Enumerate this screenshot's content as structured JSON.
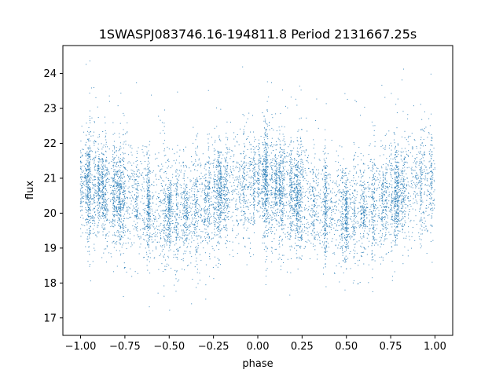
{
  "chart_data": {
    "type": "scatter",
    "title": "1SWASPJ083746.16-194811.8 Period 2131667.25s",
    "xlabel": "phase",
    "ylabel": "flux",
    "xlim": [
      -1.1,
      1.1
    ],
    "ylim": [
      16.5,
      24.8
    ],
    "xticks": [
      -1.0,
      -0.75,
      -0.5,
      -0.25,
      0.0,
      0.25,
      0.5,
      0.75,
      1.0
    ],
    "xtick_labels": [
      "−1.00",
      "−0.75",
      "−0.50",
      "−0.25",
      "0.00",
      "0.25",
      "0.50",
      "0.75",
      "1.00"
    ],
    "yticks": [
      17,
      18,
      19,
      20,
      21,
      22,
      23,
      24
    ],
    "ytick_labels": [
      "17",
      "18",
      "19",
      "20",
      "21",
      "22",
      "23",
      "24"
    ],
    "grid": false,
    "legend": "none",
    "series": [
      {
        "color": "#1f77b4",
        "marker_size_hint": "tiny dots",
        "phase_mean_flux": {
          "x": [
            -1.0,
            -0.875,
            -0.75,
            -0.625,
            -0.5,
            -0.375,
            -0.25,
            -0.125,
            0.0,
            0.125,
            0.25,
            0.375,
            0.5,
            0.625,
            0.75,
            0.875,
            1.0
          ],
          "y": [
            20.9,
            20.7,
            20.45,
            20.2,
            20.0,
            20.1,
            20.45,
            20.75,
            20.9,
            20.7,
            20.45,
            20.2,
            20.0,
            20.1,
            20.45,
            20.75,
            20.9
          ]
        },
        "scatter_range": [
          16.9,
          24.4
        ],
        "approx_point_count": 9000
      }
    ]
  }
}
